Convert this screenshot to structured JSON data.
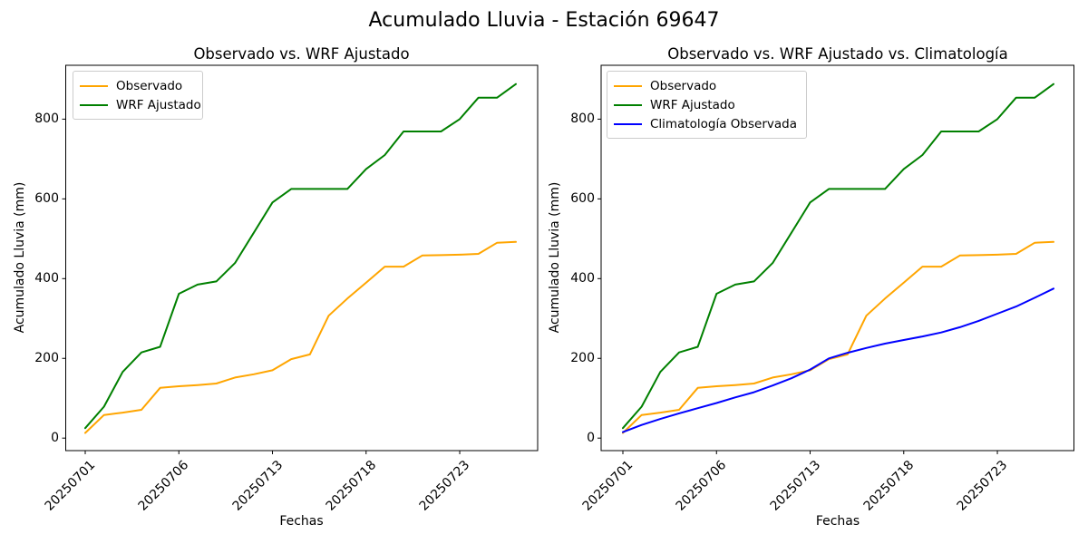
{
  "figure_title": "Acumulado Lluvia - Estación 69647",
  "colors": {
    "observado": "#FFA500",
    "wrf_ajustado": "#008000",
    "climatologia": "#0000FF",
    "axis": "#000000",
    "legend_border": "#cccccc"
  },
  "chart_data": [
    {
      "type": "line",
      "title": "Observado vs. WRF Ajustado",
      "xlabel": "Fechas",
      "ylabel": "Acumulado Lluvia (mm)",
      "x_tick_positions": [
        0,
        5,
        10,
        15,
        20
      ],
      "x_tick_labels": [
        "20250701",
        "20250706",
        "20250713",
        "20250718",
        "20250723"
      ],
      "y_tick_values": [
        0,
        200,
        400,
        600,
        800
      ],
      "y_tick_labels": [
        "0",
        "200",
        "400",
        "600",
        "800"
      ],
      "n_points": 24,
      "ylim": [
        -31,
        931
      ],
      "grid": false,
      "legend_position": "upper left",
      "series": [
        {
          "name": "Observado",
          "color": "#FFA500",
          "values": [
            13,
            58,
            64,
            71,
            126,
            130,
            133,
            137,
            152,
            160,
            170,
            198,
            210,
            307,
            350,
            390,
            430,
            430,
            458,
            459,
            460,
            462,
            490,
            492
          ]
        },
        {
          "name": "WRF Ajustado",
          "color": "#008000",
          "values": [
            25,
            79,
            166,
            215,
            229,
            362,
            385,
            393,
            439,
            515,
            591,
            625,
            625,
            625,
            625,
            675,
            710,
            769,
            769,
            769,
            800,
            854,
            854,
            888
          ]
        }
      ]
    },
    {
      "type": "line",
      "title": "Observado vs. WRF Ajustado vs. Climatología",
      "xlabel": "Fechas",
      "ylabel": "Acumulado Lluvia (mm)",
      "x_tick_positions": [
        0,
        5,
        10,
        15,
        20
      ],
      "x_tick_labels": [
        "20250701",
        "20250706",
        "20250713",
        "20250718",
        "20250723"
      ],
      "y_tick_values": [
        0,
        200,
        400,
        600,
        800
      ],
      "y_tick_labels": [
        "0",
        "200",
        "400",
        "600",
        "800"
      ],
      "n_points": 24,
      "ylim": [
        -31,
        931
      ],
      "grid": false,
      "legend_position": "upper left",
      "series": [
        {
          "name": "Observado",
          "color": "#FFA500",
          "values": [
            13,
            58,
            64,
            71,
            126,
            130,
            133,
            137,
            152,
            160,
            170,
            198,
            210,
            307,
            350,
            390,
            430,
            430,
            458,
            459,
            460,
            462,
            490,
            492
          ]
        },
        {
          "name": "WRF Ajustado",
          "color": "#008000",
          "values": [
            25,
            79,
            166,
            215,
            229,
            362,
            385,
            393,
            439,
            515,
            591,
            625,
            625,
            625,
            625,
            675,
            710,
            769,
            769,
            769,
            800,
            854,
            854,
            888
          ]
        },
        {
          "name": "Climatología Observada",
          "color": "#0000FF",
          "values": [
            15,
            33,
            48,
            62,
            75,
            88,
            102,
            115,
            132,
            150,
            172,
            200,
            214,
            226,
            237,
            246,
            255,
            265,
            278,
            294,
            312,
            330,
            352,
            375
          ]
        }
      ]
    }
  ]
}
